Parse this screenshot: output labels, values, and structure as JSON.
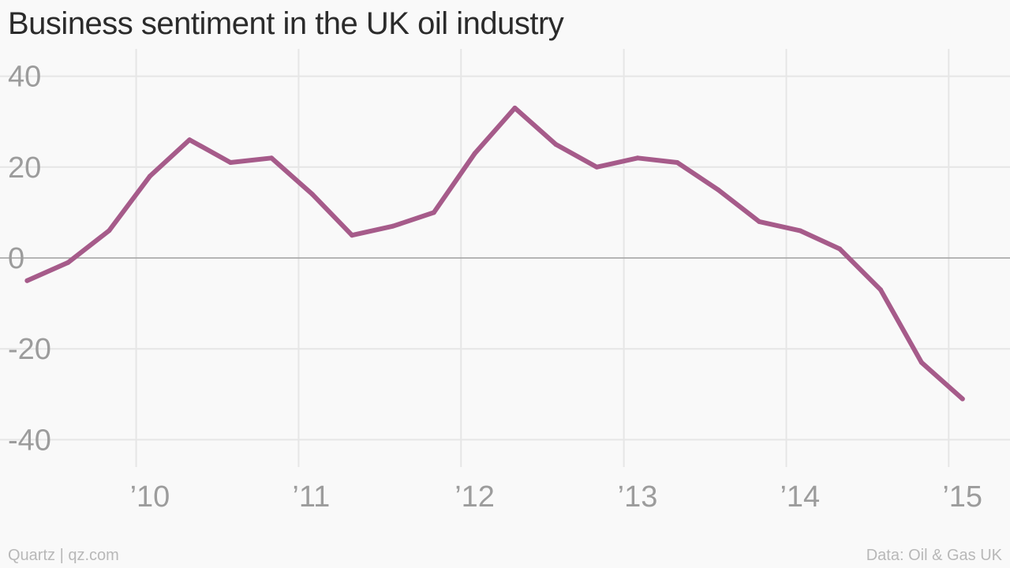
{
  "chart_data": {
    "type": "line",
    "title": "Business sentiment in the UK oil industry",
    "xlabel": "",
    "ylabel": "",
    "ylim": [
      -46,
      46
    ],
    "y_ticks": [
      {
        "value": 40,
        "label": "40"
      },
      {
        "value": 20,
        "label": "20"
      },
      {
        "value": 0,
        "label": "0"
      },
      {
        "value": -20,
        "label": "-20"
      },
      {
        "value": -40,
        "label": "-40"
      }
    ],
    "x_range": [
      "2009-03-01",
      "2015-05-01"
    ],
    "x_ticks": [
      {
        "value": "2010-01-01",
        "label": "’10"
      },
      {
        "value": "2011-01-01",
        "label": "’11"
      },
      {
        "value": "2012-01-01",
        "label": "’12"
      },
      {
        "value": "2013-01-01",
        "label": "’13"
      },
      {
        "value": "2014-01-01",
        "label": "’14"
      },
      {
        "value": "2015-01-01",
        "label": "’15"
      }
    ],
    "grid": true,
    "series": [
      {
        "color": "#a65b8a",
        "points": [
          {
            "x": "2009-05-01",
            "y": -5
          },
          {
            "x": "2009-08-01",
            "y": -1
          },
          {
            "x": "2009-11-01",
            "y": 6
          },
          {
            "x": "2010-02-01",
            "y": 18
          },
          {
            "x": "2010-05-01",
            "y": 26
          },
          {
            "x": "2010-08-01",
            "y": 21
          },
          {
            "x": "2010-11-01",
            "y": 22
          },
          {
            "x": "2011-02-01",
            "y": 14
          },
          {
            "x": "2011-05-01",
            "y": 5
          },
          {
            "x": "2011-08-01",
            "y": 7
          },
          {
            "x": "2011-11-01",
            "y": 10
          },
          {
            "x": "2012-02-01",
            "y": 23
          },
          {
            "x": "2012-05-01",
            "y": 33
          },
          {
            "x": "2012-08-01",
            "y": 25
          },
          {
            "x": "2012-11-01",
            "y": 20
          },
          {
            "x": "2013-02-01",
            "y": 22
          },
          {
            "x": "2013-05-01",
            "y": 21
          },
          {
            "x": "2013-08-01",
            "y": 15
          },
          {
            "x": "2013-11-01",
            "y": 8
          },
          {
            "x": "2014-02-01",
            "y": 6
          },
          {
            "x": "2014-05-01",
            "y": 2
          },
          {
            "x": "2014-08-01",
            "y": -7
          },
          {
            "x": "2014-11-01",
            "y": -23
          },
          {
            "x": "2015-02-01",
            "y": -31
          }
        ]
      }
    ]
  },
  "footer": {
    "source_left": "Quartz | qz.com",
    "source_right": "Data: Oil & Gas UK"
  },
  "colors": {
    "line": "#a65b8a",
    "grid": "#e6e6e6",
    "zero_line": "#a0a0a0",
    "tick_text": "#9c9c9c",
    "title_text": "#2b2b2b"
  }
}
